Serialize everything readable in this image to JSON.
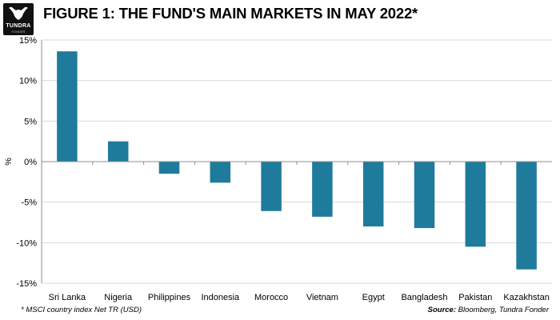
{
  "header": {
    "logo_name": "TUNDRA",
    "logo_sub": "FONDER",
    "title": "FIGURE 1: THE FUND'S MAIN MARKETS IN MAY 2022*"
  },
  "footer": {
    "footnote": "* MSCI country index Net TR (USD)",
    "source_label": "Source:",
    "source_text": "Bloomberg, Tundra Fonder"
  },
  "colors": {
    "bar": "#1f7b9c",
    "grid": "#d9d9d9",
    "axis": "#8c8c8c",
    "logo_bg": "#111111"
  },
  "chart_data": {
    "type": "bar",
    "title": "FIGURE 1: THE FUND'S MAIN MARKETS IN MAY 2022*",
    "xlabel": "",
    "ylabel": "%",
    "ylim": [
      -15,
      15
    ],
    "yticks": [
      15,
      10,
      5,
      0,
      -5,
      -10,
      -15
    ],
    "ytick_labels": [
      "15%",
      "10%",
      "5%",
      "0%",
      "-5%",
      "-10%",
      "-15%"
    ],
    "grid": true,
    "legend": "none",
    "categories": [
      "Sri Lanka",
      "Nigeria",
      "Philippines",
      "Indonesia",
      "Morocco",
      "Vietnam",
      "Egypt",
      "Bangladesh",
      "Pakistan",
      "Kazakhstan"
    ],
    "values": [
      13.6,
      2.5,
      -1.5,
      -2.6,
      -6.1,
      -6.8,
      -8.0,
      -8.2,
      -10.5,
      -13.3
    ]
  }
}
